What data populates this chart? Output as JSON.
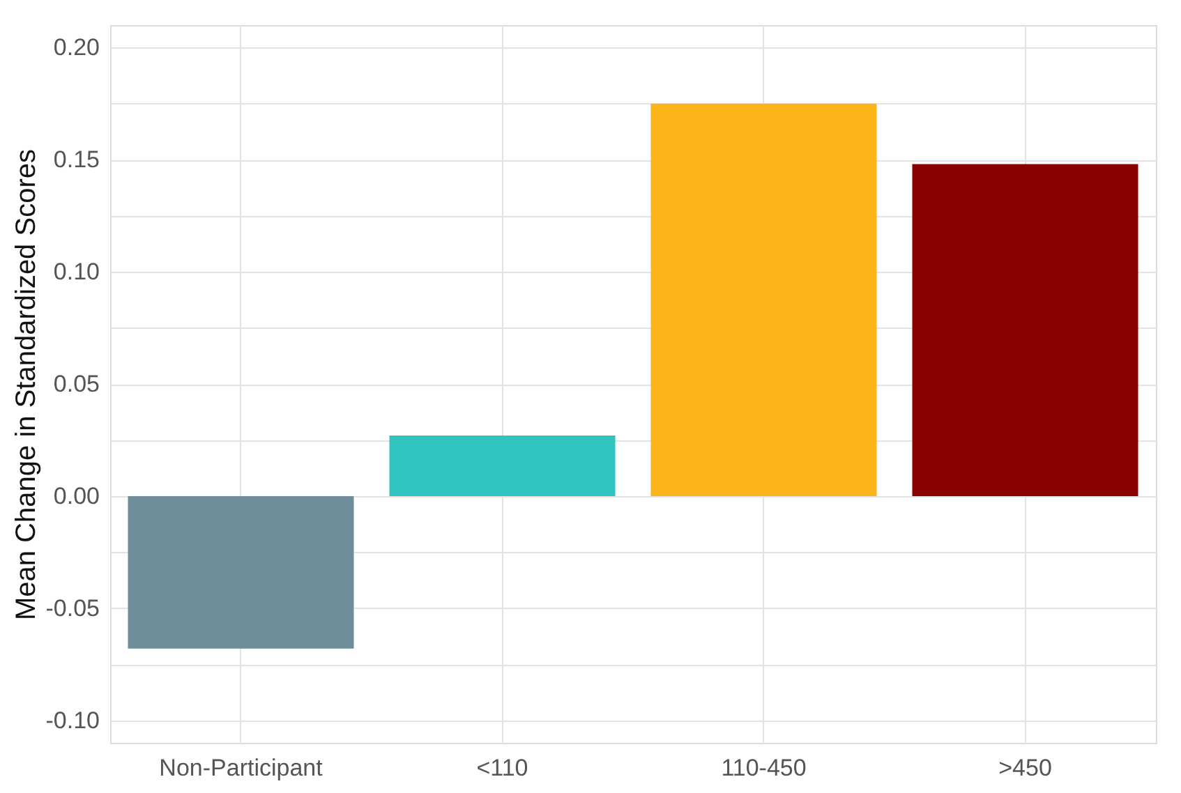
{
  "chart_data": {
    "type": "bar",
    "ylabel": "Mean Change in Standardized Scores",
    "categories": [
      "Non-Participant",
      "<110",
      "110-450",
      ">450"
    ],
    "values": [
      -0.068,
      0.027,
      0.175,
      0.148
    ],
    "colors": [
      "#6f8d98",
      "#2fc4c0",
      "#fbb41a",
      "#8b0000"
    ],
    "ylim": [
      -0.11,
      0.21
    ],
    "yticks": [
      {
        "value": -0.1,
        "label": "-0.10"
      },
      {
        "value": -0.075,
        "label": null
      },
      {
        "value": -0.05,
        "label": "-0.05"
      },
      {
        "value": -0.025,
        "label": null
      },
      {
        "value": 0,
        "label": "0.00"
      },
      {
        "value": 0.025,
        "label": null
      },
      0.05,
      {
        "value": 0.075,
        "label": null
      },
      {
        "value": 0.1,
        "label": "0.10"
      },
      {
        "value": 0.125,
        "label": null
      },
      0.15,
      {
        "value": 0.175,
        "label": null
      },
      {
        "value": 0.2,
        "label": "0.20"
      }
    ],
    "grid": true,
    "legend": false
  }
}
